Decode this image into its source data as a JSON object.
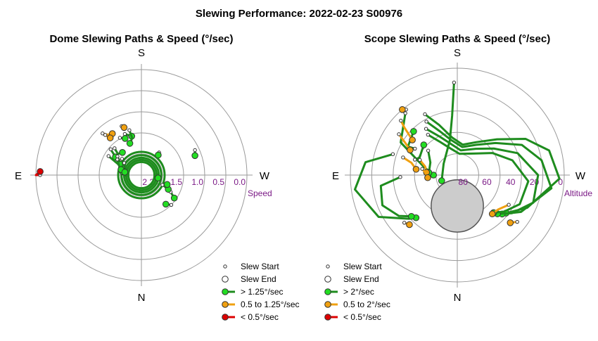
{
  "title": "Slewing Performance: 2022-02-23 S00976",
  "colors": {
    "fast": "#1e8c1e",
    "fast_marker": "#22dd22",
    "medium": "#f0a010",
    "slow": "#dd0000",
    "grid": "#9a9a9a",
    "axis_label": "#7b1a86",
    "obscured": "#cccccc"
  },
  "chart_data": [
    {
      "type": "scatter",
      "projection": "polar",
      "title": "Dome Slewing Paths & Speed (°/sec)",
      "compass": {
        "top": "S",
        "bottom": "N",
        "left": "E",
        "right": "W"
      },
      "radial_axis": {
        "label": "Speed",
        "ticks": [
          "2.0",
          "1.5",
          "1.0",
          "0.5",
          "0.0"
        ],
        "tick_values": [
          2.0,
          1.5,
          1.0,
          0.5,
          0.0
        ],
        "rmax": 2.5,
        "inverted": true,
        "partial_tick": "2"
      },
      "legend": [
        {
          "label": "Slew Start",
          "kind": "start"
        },
        {
          "label": "Slew End",
          "kind": "end"
        },
        {
          "label": "> 1.25°/sec",
          "kind": "fast"
        },
        {
          "label": "0.5 to 1.25°/sec",
          "kind": "medium"
        },
        {
          "label": "< 0.5°/sec",
          "kind": "slow"
        }
      ],
      "paths": [
        {
          "cat": "slow",
          "pts": [
            [
              90,
              0.1
            ],
            [
              90,
              0.0
            ],
            [
              88,
              0.1
            ]
          ]
        },
        {
          "cat": "medium",
          "pts": [
            [
              43,
              1.15
            ],
            [
              40,
              1.25
            ],
            [
              35,
              1.3
            ]
          ]
        },
        {
          "cat": "medium",
          "pts": [
            [
              42,
              1.22
            ],
            [
              40,
              1.35
            ]
          ]
        },
        {
          "cat": "medium",
          "pts": [
            [
              22,
              1.25
            ],
            [
              20,
              1.3
            ]
          ]
        },
        {
          "cat": "fast",
          "pts": [
            [
              22,
              1.45
            ],
            [
              14,
              1.55
            ]
          ]
        },
        {
          "cat": "fast",
          "pts": [
            [
              30,
              1.48
            ],
            [
              24,
              1.55
            ]
          ]
        },
        {
          "cat": "fast",
          "pts": [
            [
              -38,
              1.82
            ],
            [
              -40,
              1.88
            ]
          ]
        },
        {
          "cat": "fast",
          "pts": [
            [
              15,
              1.4
            ],
            [
              14,
              1.6
            ],
            [
              20,
              1.7
            ]
          ]
        },
        {
          "cat": "fast",
          "pts": [
            [
              45,
              1.6
            ],
            [
              48,
              1.75
            ],
            [
              40,
              1.8
            ]
          ]
        },
        {
          "cat": "fast",
          "pts": [
            [
              50,
              1.55
            ],
            [
              55,
              1.75
            ]
          ]
        },
        {
          "cat": "fast",
          "pts": [
            [
              60,
              1.6
            ],
            [
              65,
              1.9
            ],
            [
              70,
              2.0
            ]
          ]
        },
        {
          "cat": "fast",
          "pts": [
            [
              52,
              1.78
            ],
            [
              62,
              1.95
            ]
          ]
        },
        {
          "cat": "fast",
          "pts": [
            [
              57,
              1.82
            ],
            [
              70,
              1.95
            ],
            [
              80,
              2.05
            ]
          ]
        },
        {
          "cat": "fast",
          "pts": [
            [
              50,
              1.9
            ],
            [
              60,
              2.0
            ],
            [
              75,
              2.0
            ]
          ]
        },
        {
          "cat": "fast",
          "pts": [
            [
              55,
              2.0
            ],
            [
              65,
              2.1
            ],
            [
              80,
              2.1
            ]
          ]
        },
        {
          "cat": "fast",
          "pts": [
            [
              -120,
              1.7
            ],
            [
              -125,
              1.55
            ]
          ]
        },
        {
          "cat": "fast",
          "pts": [
            [
              -115,
              1.95
            ],
            [
              -118,
              1.78
            ]
          ]
        },
        {
          "cat": "fast",
          "pts": [
            [
              -110,
              1.85
            ]
          ]
        },
        {
          "cat": "fast",
          "pts": [
            [
              -135,
              1.5
            ],
            [
              -140,
              1.6
            ]
          ]
        },
        {
          "cat": "fast",
          "pts": [
            [
              -100,
              2.1
            ]
          ]
        },
        {
          "cat": "fast",
          "pts": [
            [
              -65,
              1.1
            ],
            [
              -70,
              1.15
            ]
          ]
        }
      ],
      "loops": [
        0.55,
        0.47,
        0.41,
        0.36,
        0.31
      ]
    },
    {
      "type": "scatter",
      "projection": "polar",
      "title": "Scope Slewing Paths & Speed (°/sec)",
      "compass": {
        "top": "S",
        "bottom": "N",
        "left": "E",
        "right": "W"
      },
      "radial_axis": {
        "label": "Altitude",
        "ticks": [
          "80",
          "60",
          "40",
          "20",
          "0"
        ],
        "tick_values": [
          80,
          60,
          40,
          20,
          0
        ],
        "rmax": 90,
        "inverted": true
      },
      "obscured_region": {
        "azimuth": 180,
        "altitude": 64,
        "radius_deg": 22
      },
      "legend": [
        {
          "label": "Slew Start",
          "kind": "start"
        },
        {
          "label": "Slew End",
          "kind": "end"
        },
        {
          "label": "> 2°/sec",
          "kind": "fast"
        },
        {
          "label": "0.5 to 2°/sec",
          "kind": "medium"
        },
        {
          "label": "< 0.5°/sec",
          "kind": "slow"
        }
      ],
      "paths": [
        {
          "cat": "fast",
          "pts": [
            [
              2,
              12
            ],
            [
              5,
              40
            ],
            [
              12,
              60
            ],
            [
              50,
              75
            ],
            [
              110,
              76
            ]
          ]
        },
        {
          "cat": "fast",
          "pts": [
            [
              40,
              22
            ],
            [
              60,
              35
            ],
            [
              75,
              60
            ],
            [
              90,
              70
            ]
          ]
        },
        {
          "cat": "fast",
          "pts": [
            [
              28,
              32
            ],
            [
              20,
              45
            ],
            [
              8,
              58
            ],
            [
              -10,
              64
            ],
            [
              -30,
              58
            ],
            [
              -48,
              45
            ],
            [
              -62,
              25
            ],
            [
              -75,
              10
            ],
            [
              -92,
              4
            ],
            [
              -115,
              25
            ],
            [
              -128,
              38
            ]
          ]
        },
        {
          "cat": "fast",
          "pts": [
            [
              30,
              38
            ],
            [
              22,
              50
            ],
            [
              10,
              60
            ],
            [
              -10,
              66
            ],
            [
              -32,
              60
            ],
            [
              -50,
              48
            ],
            [
              -65,
              30
            ],
            [
              -80,
              18
            ],
            [
              -98,
              10
            ],
            [
              -120,
              28
            ],
            [
              -131,
              40
            ]
          ]
        },
        {
          "cat": "fast",
          "pts": [
            [
              34,
              43
            ],
            [
              25,
              54
            ],
            [
              12,
              63
            ],
            [
              -8,
              69
            ],
            [
              -35,
              63
            ],
            [
              -54,
              52
            ],
            [
              -70,
              36
            ],
            [
              -90,
              22
            ],
            [
              -110,
              22
            ],
            [
              -125,
              34
            ],
            [
              -134,
              43
            ]
          ]
        },
        {
          "cat": "fast",
          "pts": [
            [
              36,
              48
            ],
            [
              28,
              58
            ],
            [
              14,
              67
            ],
            [
              -6,
              72
            ],
            [
              -38,
              67
            ],
            [
              -58,
              55
            ],
            [
              -75,
              42
            ],
            [
              -95,
              30
            ],
            [
              -115,
              32
            ],
            [
              -128,
              40
            ],
            [
              -136,
              46
            ]
          ]
        },
        {
          "cat": "fast",
          "pts": [
            [
              72,
              33
            ],
            [
              82,
              12
            ],
            [
              98,
              3
            ],
            [
              118,
              15
            ],
            [
              132,
              35
            ],
            [
              136,
              40
            ]
          ]
        },
        {
          "cat": "fast",
          "pts": [
            [
              92,
              42
            ],
            [
              98,
              25
            ],
            [
              112,
              22
            ],
            [
              125,
              30
            ],
            [
              132,
              38
            ]
          ]
        },
        {
          "cat": "fast",
          "pts": [
            [
              58,
              48
            ],
            [
              60,
              42
            ],
            [
              45,
              38
            ]
          ]
        },
        {
          "cat": "fast",
          "pts": [
            [
              70,
              52
            ],
            [
              65,
              55
            ],
            [
              48,
              52
            ]
          ]
        },
        {
          "cat": "fast",
          "pts": [
            [
              50,
              58
            ],
            [
              65,
              65
            ],
            [
              85,
              66
            ]
          ]
        },
        {
          "cat": "medium",
          "pts": [
            [
              38,
              20
            ],
            [
              40,
              18
            ]
          ]
        },
        {
          "cat": "medium",
          "pts": [
            [
              46,
              24
            ],
            [
              48,
              30
            ],
            [
              52,
              42
            ]
          ]
        },
        {
          "cat": "medium",
          "pts": [
            [
              55,
              30
            ],
            [
              58,
              38
            ],
            [
              62,
              45
            ]
          ]
        },
        {
          "cat": "medium",
          "pts": [
            [
              72,
              42
            ],
            [
              75,
              50
            ],
            [
              82,
              55
            ]
          ]
        },
        {
          "cat": "medium",
          "pts": [
            [
              68,
              56
            ],
            [
              75,
              62
            ],
            [
              85,
              64
            ]
          ]
        },
        {
          "cat": "medium",
          "pts": [
            [
              80,
              60
            ],
            [
              88,
              64
            ],
            [
              95,
              65
            ]
          ]
        },
        {
          "cat": "medium",
          "pts": [
            [
              132,
              30
            ],
            [
              136,
              32
            ]
          ]
        },
        {
          "cat": "medium",
          "pts": [
            [
              -120,
              40
            ],
            [
              -130,
              45
            ],
            [
              -138,
              46
            ]
          ]
        },
        {
          "cat": "medium",
          "pts": [
            [
              -128,
              26
            ],
            [
              -132,
              30
            ]
          ]
        }
      ]
    }
  ]
}
